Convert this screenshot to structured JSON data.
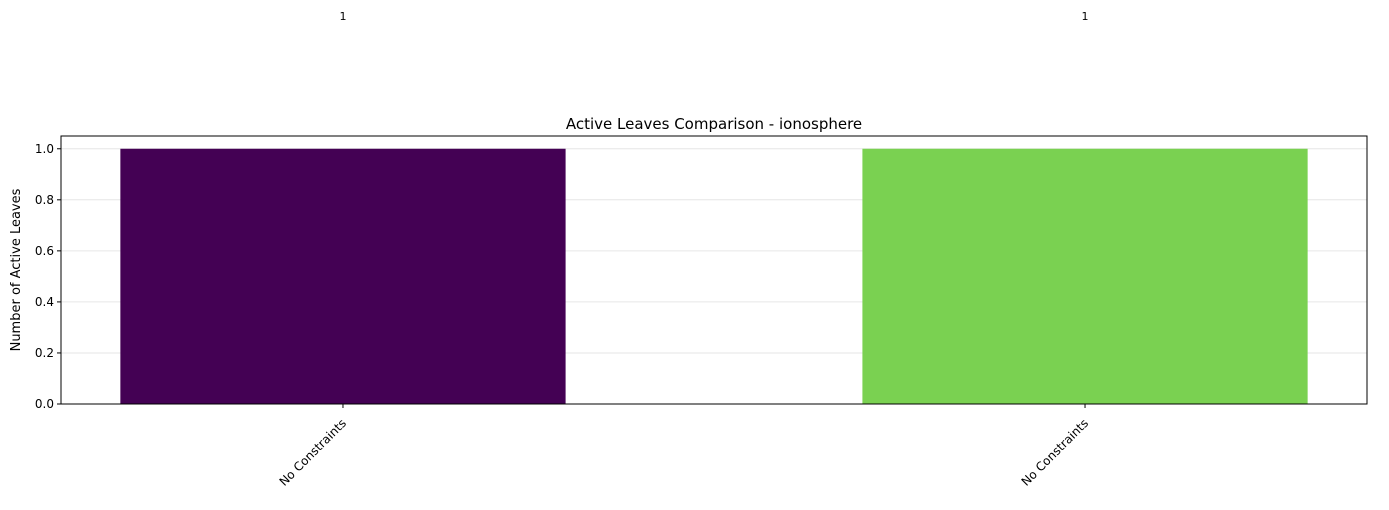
{
  "chart_data": {
    "type": "bar",
    "title": "Active Leaves Comparison - ionosphere",
    "xlabel": "",
    "ylabel": "Number of Active Leaves",
    "categories": [
      "No Constraints",
      "No Constraints"
    ],
    "values": [
      1,
      1
    ],
    "data_labels": [
      "1",
      "1"
    ],
    "bar_colors": [
      "#440154",
      "#7ad151"
    ],
    "ylim": [
      0,
      1.05
    ],
    "yticks": [
      0.0,
      0.2,
      0.4,
      0.6,
      0.8,
      1.0
    ],
    "ytick_labels": [
      "0.0",
      "0.2",
      "0.4",
      "0.6",
      "0.8",
      "1.0"
    ],
    "grid": "y",
    "grid_color": "#e6e6e6",
    "xtick_rotation": "45 degrees, right-aligned"
  }
}
